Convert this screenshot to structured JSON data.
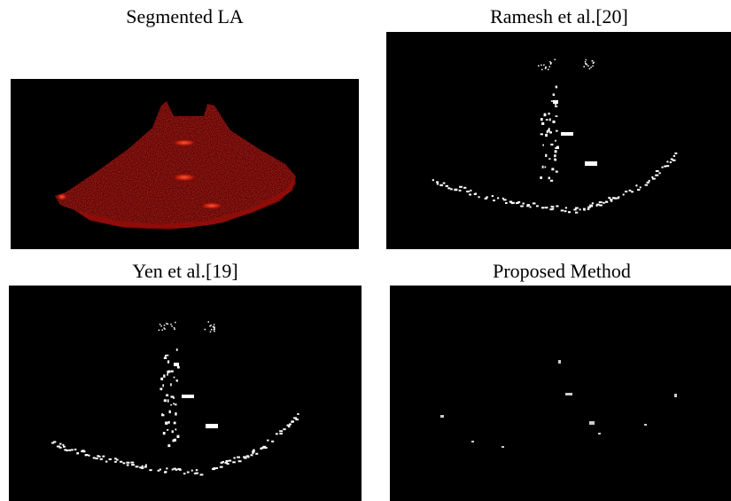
{
  "panels": [
    {
      "caption": "Segmented LA",
      "image": "segmented-left-atrium-red-overlay"
    },
    {
      "caption": "Ramesh et al.[20]",
      "image": "ramesh-binary-scar-map"
    },
    {
      "caption": "Yen et al.[19]",
      "image": "yen-binary-scar-map"
    },
    {
      "caption": "Proposed Method",
      "image": "proposed-method-scar-map"
    }
  ],
  "colors": {
    "background": "#000000",
    "tissue": "#8a0a06",
    "highlight": "#ff3a1e",
    "scar": "#ffffff"
  }
}
